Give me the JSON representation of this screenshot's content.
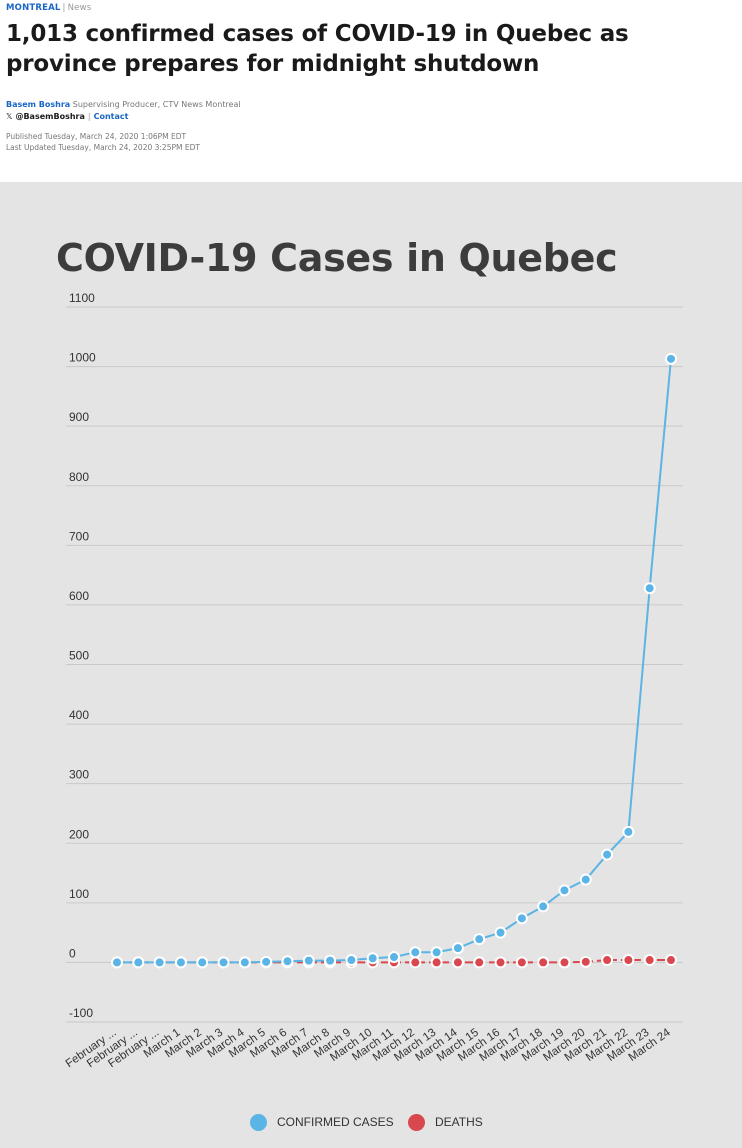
{
  "article": {
    "section": "MONTREAL",
    "separator": "|",
    "category": "News",
    "headline": "1,013 confirmed cases of COVID-19 in Quebec as province prepares for midnight shutdown",
    "author": "Basem Boshra",
    "author_role": "Supervising Producer, CTV News Montreal",
    "twitter_handle": "@BasemBoshra",
    "contact_label": "Contact",
    "published": "Published Tuesday, March 24, 2020 1:06PM EDT",
    "updated": "Last Updated Tuesday, March 24, 2020 3:25PM EDT"
  },
  "colors": {
    "confirmed": "#5ab4e5",
    "deaths": "#d9474f",
    "link": "#1a66c7",
    "panel_bg": "#e4e4e4"
  },
  "chart_data": {
    "type": "line",
    "title": "COVID-19 Cases in Quebec",
    "xlabel": "",
    "ylabel": "",
    "ylim": [
      -100,
      1100
    ],
    "yticks": [
      -100,
      0,
      100,
      200,
      300,
      400,
      500,
      600,
      700,
      800,
      900,
      1000,
      1100
    ],
    "grid": true,
    "legend_position": "bottom",
    "categories": [
      "February ...",
      "February ...",
      "February ...",
      "March 1",
      "March 2",
      "March 3",
      "March 4",
      "March 5",
      "March 6",
      "March 7",
      "March 8",
      "March 9",
      "March 10",
      "March 11",
      "March 12",
      "March 13",
      "March 14",
      "March 15",
      "March 16",
      "March 17",
      "March 18",
      "March 19",
      "March 20",
      "March 21",
      "March 22",
      "March 23",
      "March 24"
    ],
    "series": [
      {
        "name": "CONFIRMED CASES",
        "color": "#5ab4e5",
        "values": [
          0,
          0,
          0,
          0,
          0,
          0,
          0,
          1,
          2,
          3,
          3,
          4,
          7,
          9,
          17,
          17,
          24,
          39,
          50,
          74,
          94,
          121,
          139,
          181,
          219,
          628,
          1013
        ]
      },
      {
        "name": "DEATHS",
        "color": "#d9474f",
        "values": [
          0,
          0,
          0,
          0,
          0,
          0,
          0,
          0,
          0,
          0,
          0,
          0,
          0,
          0,
          0,
          0,
          0,
          0,
          0,
          0,
          0,
          0,
          1,
          4,
          4,
          4,
          4
        ]
      }
    ]
  }
}
